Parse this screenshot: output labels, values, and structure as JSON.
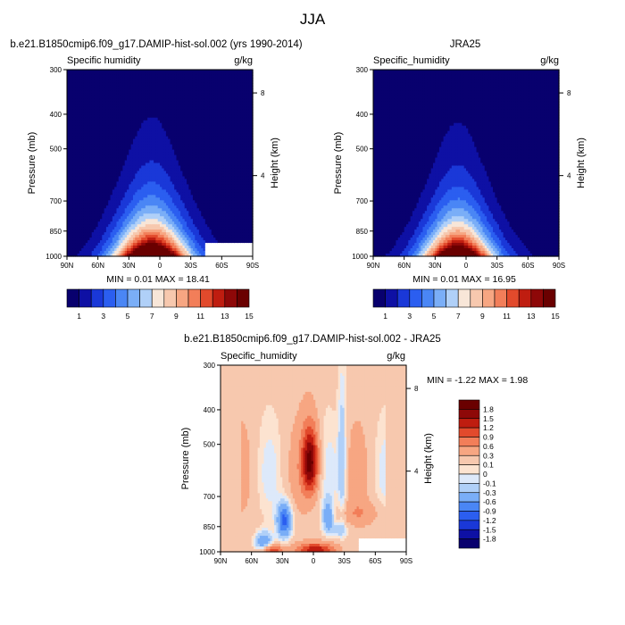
{
  "figure": {
    "title": "JJA"
  },
  "colors": {
    "model_scale": [
      "#08006e",
      "#0e10a4",
      "#1a38d8",
      "#2b5ef0",
      "#4a86f5",
      "#7aaef7",
      "#b0d0f8",
      "#f8e6d8",
      "#f7c8ae",
      "#f7a682",
      "#f27e59",
      "#e24a2c",
      "#bf1d10",
      "#8e0808",
      "#6a0000"
    ],
    "diff_scale": [
      "#08006e",
      "#0e10a4",
      "#1a38d8",
      "#2b5ef0",
      "#4a86f5",
      "#7aaef7",
      "#b0d0f8",
      "#dde9fa",
      "#fce3d0",
      "#f7c8ae",
      "#f7a682",
      "#f27e59",
      "#e24a2c",
      "#bf1d10",
      "#8e0808",
      "#6a0000"
    ],
    "frame": "#000000",
    "missing": "#ffffff"
  },
  "chart_data": [
    {
      "type": "heatmap",
      "panel": "model",
      "title": "b.e21.B1850cmip6.f09_g17.DAMIP-hist-sol.002 (yrs 1990-2014)",
      "left_string": "Specific humidity",
      "right_string": "g/kg",
      "ylabel": "Pressure (mb)",
      "ylabel_right": "Height (km)",
      "x_ticks": [
        "90N",
        "60N",
        "30N",
        "0",
        "30S",
        "60S",
        "90S"
      ],
      "y_ticks": [
        "300",
        "400",
        "500",
        "700",
        "850",
        "1000"
      ],
      "y_right_ticks": [
        "8",
        "4"
      ],
      "min_max": "MIN =  0.01  MAX = 18.41",
      "colorbar_labels": [
        "1",
        "3",
        "5",
        "7",
        "9",
        "11",
        "13",
        "15"
      ],
      "levels": [
        0,
        1,
        2,
        3,
        4,
        5,
        6,
        7,
        8,
        9,
        10,
        11,
        12,
        13,
        14,
        15
      ],
      "peak_value": 18.41,
      "peak_lat": 8,
      "peak_width_lat": 34,
      "mask_region": {
        "lat_from": -45,
        "lat_to": -90,
        "pressure_from": 920
      }
    },
    {
      "type": "heatmap",
      "panel": "obs",
      "title": "JRA25",
      "left_string": "Specific_humidity",
      "right_string": "g/kg",
      "ylabel": "Pressure (mb)",
      "ylabel_right": "Height (km)",
      "x_ticks": [
        "90N",
        "60N",
        "30N",
        "0",
        "30S",
        "60S",
        "90S"
      ],
      "y_ticks": [
        "300",
        "400",
        "500",
        "700",
        "850",
        "1000"
      ],
      "y_right_ticks": [
        "8",
        "4"
      ],
      "min_max": "MIN =  0.01  MAX = 16.95",
      "colorbar_labels": [
        "1",
        "3",
        "5",
        "7",
        "9",
        "11",
        "13",
        "15"
      ],
      "levels": [
        0,
        1,
        2,
        3,
        4,
        5,
        6,
        7,
        8,
        9,
        10,
        11,
        12,
        13,
        14,
        15
      ],
      "peak_value": 16.95,
      "peak_lat": 8,
      "peak_width_lat": 32
    },
    {
      "type": "heatmap",
      "panel": "difference",
      "title": "b.e21.B1850cmip6.f09_g17.DAMIP-hist-sol.002 - JRA25",
      "left_string": "Specific_humidity",
      "right_string": "g/kg",
      "ylabel": "Pressure (mb)",
      "ylabel_right": "Height (km)",
      "x_ticks": [
        "90N",
        "60N",
        "30N",
        "0",
        "30S",
        "60S",
        "90S"
      ],
      "y_ticks": [
        "300",
        "400",
        "500",
        "700",
        "850",
        "1000"
      ],
      "y_right_ticks": [
        "8",
        "4"
      ],
      "min_max": "MIN = -1.22  MAX =  1.98",
      "colorbar_labels": [
        "1.8",
        "1.5",
        "1.2",
        "0.9",
        "0.6",
        "0.3",
        "0.1",
        "0",
        "-0.1",
        "-0.3",
        "-0.6",
        "-0.9",
        "-1.2",
        "-1.5",
        "-1.8"
      ],
      "levels": [
        -1.8,
        -1.5,
        -1.2,
        -0.9,
        -0.6,
        -0.3,
        -0.1,
        0,
        0.1,
        0.3,
        0.6,
        0.9,
        1.2,
        1.5,
        1.8
      ],
      "min": -1.22,
      "max": 1.98,
      "mask_region": {
        "lat_from": -45,
        "lat_to": -90,
        "pressure_from": 920
      }
    }
  ]
}
